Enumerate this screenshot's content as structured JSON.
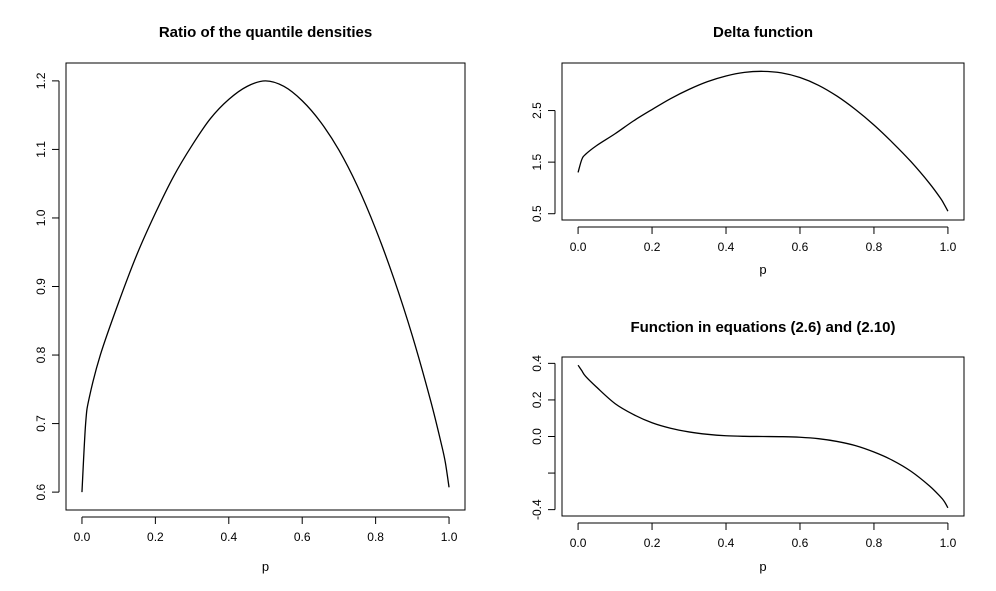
{
  "chart_data": [
    {
      "type": "line",
      "title": "Ratio of the quantile densities",
      "xlabel": "p",
      "ylabel": "",
      "xlim": [
        0,
        1
      ],
      "ylim": [
        0.6,
        1.2
      ],
      "xticks": [
        0.0,
        0.2,
        0.4,
        0.6,
        0.8,
        1.0
      ],
      "xtick_labels": [
        "0.0",
        "0.2",
        "0.4",
        "0.6",
        "0.8",
        "1.0"
      ],
      "yticks": [
        0.6,
        0.7,
        0.8,
        0.9,
        1.0,
        1.1,
        1.2
      ],
      "ytick_labels": [
        "0.6",
        "0.7",
        "0.8",
        "0.9",
        "1.0",
        "1.1",
        "1.2"
      ],
      "grid": false,
      "series": [
        {
          "x": [
            0.0,
            0.01,
            0.02,
            0.05,
            0.1,
            0.15,
            0.2,
            0.25,
            0.3,
            0.35,
            0.4,
            0.45,
            0.5,
            0.55,
            0.6,
            0.65,
            0.7,
            0.75,
            0.8,
            0.85,
            0.9,
            0.95,
            0.98,
            0.99,
            1.0
          ],
          "y": [
            0.6,
            0.7,
            0.738,
            0.8,
            0.877,
            0.947,
            1.007,
            1.061,
            1.106,
            1.145,
            1.173,
            1.192,
            1.2,
            1.192,
            1.171,
            1.14,
            1.099,
            1.047,
            0.984,
            0.911,
            0.828,
            0.733,
            0.668,
            0.643,
            0.607
          ]
        }
      ]
    },
    {
      "type": "line",
      "title": "Delta function",
      "xlabel": "p",
      "ylabel": "",
      "xlim": [
        0,
        1
      ],
      "ylim": [
        0.5,
        3.3
      ],
      "xticks": [
        0.0,
        0.2,
        0.4,
        0.6,
        0.8,
        1.0
      ],
      "xtick_labels": [
        "0.0",
        "0.2",
        "0.4",
        "0.6",
        "0.8",
        "1.0"
      ],
      "yticks": [
        0.5,
        1.5,
        2.5
      ],
      "ytick_labels": [
        "0.5",
        "1.5",
        "2.5"
      ],
      "grid": false,
      "series": [
        {
          "x": [
            0.0,
            0.01,
            0.02,
            0.05,
            0.1,
            0.15,
            0.2,
            0.25,
            0.3,
            0.35,
            0.4,
            0.45,
            0.5,
            0.55,
            0.6,
            0.65,
            0.7,
            0.75,
            0.8,
            0.85,
            0.9,
            0.95,
            0.98,
            0.99,
            1.0
          ],
          "y": [
            1.3,
            1.55,
            1.65,
            1.82,
            2.05,
            2.3,
            2.52,
            2.73,
            2.91,
            3.06,
            3.17,
            3.24,
            3.26,
            3.23,
            3.14,
            2.99,
            2.78,
            2.52,
            2.22,
            1.88,
            1.51,
            1.09,
            0.8,
            0.68,
            0.55
          ]
        }
      ]
    },
    {
      "type": "line",
      "title": "Function in equations (2.6) and (2.10)",
      "xlabel": "p",
      "ylabel": "",
      "xlim": [
        0,
        1
      ],
      "ylim": [
        -0.4,
        0.4
      ],
      "xticks": [
        0.0,
        0.2,
        0.4,
        0.6,
        0.8,
        1.0
      ],
      "xtick_labels": [
        "0.0",
        "0.2",
        "0.4",
        "0.6",
        "0.8",
        "1.0"
      ],
      "yticks": [
        -0.4,
        0.0,
        0.2,
        0.4
      ],
      "ytick_labels": [
        "-0.4",
        "0.0",
        "0.2",
        "0.4"
      ],
      "minor_yticks": [
        -0.2
      ],
      "grid": false,
      "series": [
        {
          "x": [
            0.0,
            0.01,
            0.02,
            0.05,
            0.1,
            0.15,
            0.2,
            0.25,
            0.3,
            0.35,
            0.4,
            0.45,
            0.5,
            0.55,
            0.6,
            0.65,
            0.7,
            0.75,
            0.8,
            0.85,
            0.9,
            0.95,
            0.98,
            0.99,
            1.0
          ],
          "y": [
            0.39,
            0.36,
            0.33,
            0.27,
            0.18,
            0.12,
            0.075,
            0.045,
            0.025,
            0.012,
            0.004,
            0.001,
            0.0,
            -0.001,
            -0.004,
            -0.012,
            -0.027,
            -0.05,
            -0.085,
            -0.13,
            -0.19,
            -0.27,
            -0.33,
            -0.355,
            -0.39
          ]
        }
      ]
    }
  ]
}
